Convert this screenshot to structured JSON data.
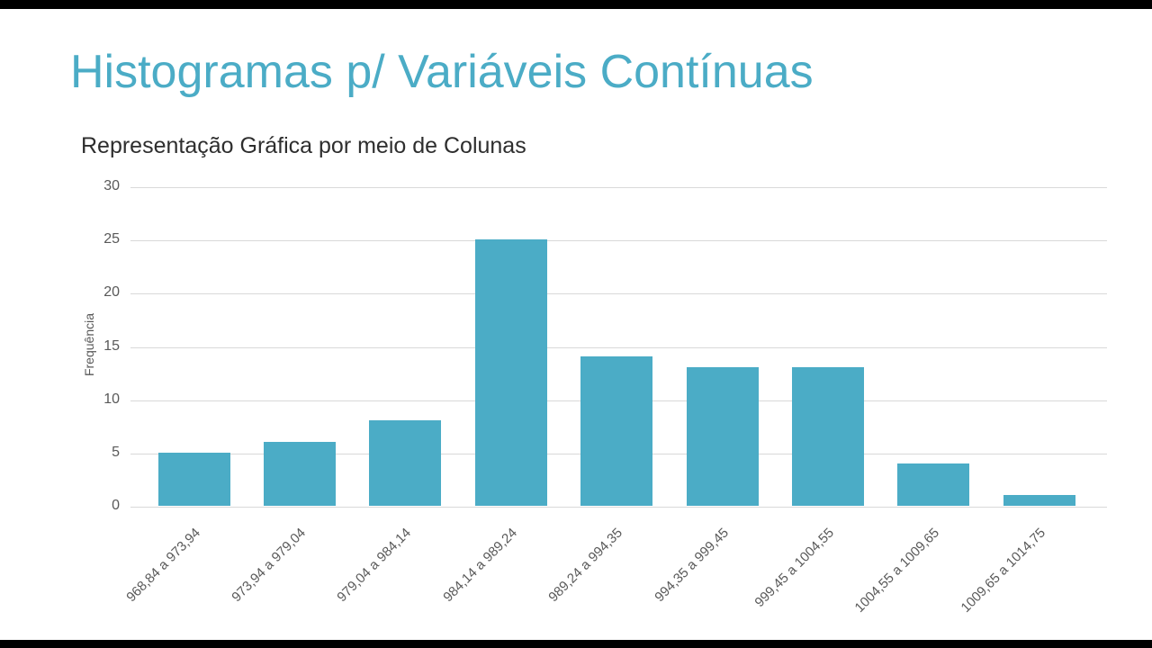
{
  "slide": {
    "title": "Histogramas p/ Variáveis Contínuas",
    "subtitle": "Representação Gráfica por meio de Colunas"
  },
  "chart_data": {
    "type": "bar",
    "title": "Representação Gráfica por meio de Colunas",
    "xlabel": "",
    "ylabel": "Frequência",
    "categories": [
      "968,84 a 973,94",
      "973,94 a 979,04",
      "979,04 a 984,14",
      "984,14 a 989,24",
      "989,24 a 994,35",
      "994,35 a 999,45",
      "999,45 a 1004,55",
      "1004,55 a 1009,65",
      "1009,65 a 1014,75"
    ],
    "values": [
      5,
      6,
      8,
      25,
      14,
      13,
      13,
      4,
      1
    ],
    "ylim": [
      0,
      30
    ],
    "yticks": [
      0,
      5,
      10,
      15,
      20,
      25,
      30
    ],
    "grid": true,
    "legend": "none",
    "bar_color": "#4BACC6"
  },
  "colors": {
    "accent": "#4BACC6",
    "title_text": "#4BACC6",
    "axis_text": "#595959",
    "gridline": "#d9d9d9",
    "background": "#ffffff",
    "letterbox": "#000000"
  }
}
